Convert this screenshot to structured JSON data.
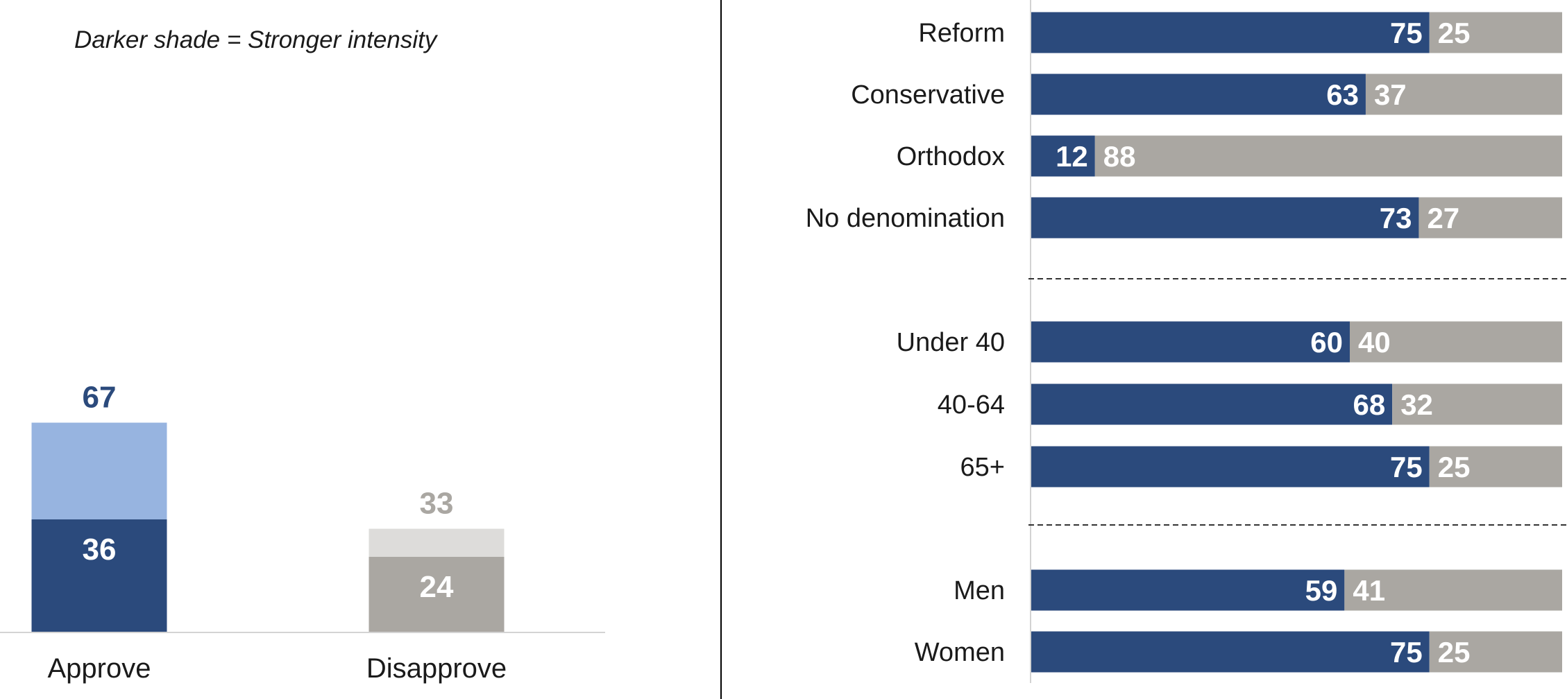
{
  "note": "Darker shade = Stronger intensity",
  "colors": {
    "approve_strong": "#2b4a7c",
    "approve_light": "#97b4e0",
    "disapprove_strong": "#aaa7a2",
    "disapprove_light": "#dddcda",
    "approve_total_label": "#2b4a7c",
    "disapprove_total_label": "#aaa7a2",
    "inner_label": "#ffffff",
    "row_label": "#1a1a1a"
  },
  "chart_data": [
    {
      "type": "bar",
      "stacked": true,
      "categories": [
        "Approve",
        "Disapprove"
      ],
      "totals": [
        67,
        33
      ],
      "series": [
        {
          "values": [
            36,
            24
          ]
        },
        {
          "values": [
            31,
            9
          ]
        }
      ],
      "inner_labels": [
        "36",
        "24"
      ],
      "total_labels": [
        "67",
        "33"
      ],
      "ylim": [
        0,
        100
      ],
      "grid": false
    },
    {
      "type": "bar",
      "orientation": "horizontal",
      "stacked": true,
      "categories": [
        "Reform",
        "Conservative",
        "Orthodox",
        "No denomination",
        "Under 40",
        "40-64",
        "65+",
        "Men",
        "Women"
      ],
      "groups": [
        [
          "Reform",
          "Conservative",
          "Orthodox",
          "No denomination"
        ],
        [
          "Under 40",
          "40-64",
          "65+"
        ],
        [
          "Men",
          "Women"
        ]
      ],
      "series": [
        {
          "values": [
            75,
            63,
            12,
            73,
            60,
            68,
            75,
            59,
            75
          ]
        },
        {
          "values": [
            25,
            37,
            88,
            27,
            40,
            32,
            25,
            41,
            25
          ]
        }
      ],
      "xlim": [
        0,
        100
      ],
      "grid": false
    }
  ]
}
